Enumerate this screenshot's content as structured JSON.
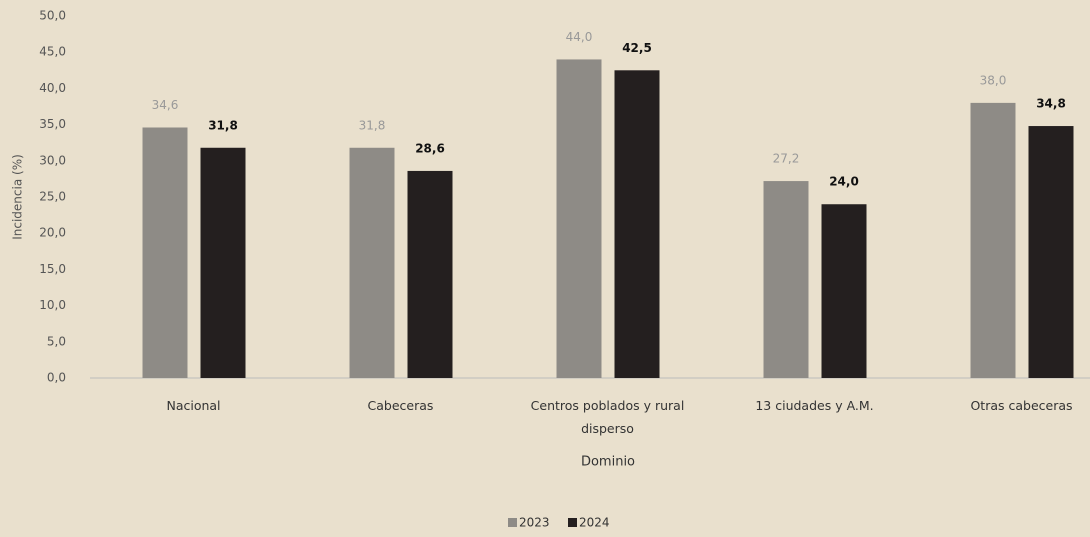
{
  "chart_data": {
    "type": "bar",
    "x_label": "Dominio",
    "y_label": "Incidencia (%)",
    "categories": [
      "Nacional",
      "Cabeceras",
      "Centros poblados y rural disperso",
      "13 ciudades y A.M.",
      "Otras cabeceras"
    ],
    "series": [
      {
        "name": "2023",
        "color": "#8e8b86",
        "values": [
          34.6,
          31.8,
          44.0,
          27.2,
          38.0
        ],
        "value_labels": [
          "34,6",
          "31,8",
          "44,0",
          "27,2",
          "38,0"
        ]
      },
      {
        "name": "2024",
        "color": "#241f1f",
        "values": [
          31.8,
          28.6,
          42.5,
          24.0,
          34.8
        ],
        "value_labels": [
          "31,8",
          "28,6",
          "42,5",
          "24,0",
          "34,8"
        ]
      }
    ],
    "ylim": [
      0,
      50
    ],
    "yticks": [
      {
        "value": 0,
        "label": "0,0"
      },
      {
        "value": 5,
        "label": "5,0"
      },
      {
        "value": 10,
        "label": "10,0"
      },
      {
        "value": 15,
        "label": "15,0"
      },
      {
        "value": 20,
        "label": "20,0"
      },
      {
        "value": 25,
        "label": "25,0"
      },
      {
        "value": 30,
        "label": "30,0"
      },
      {
        "value": 35,
        "label": "35,0"
      },
      {
        "value": 40,
        "label": "40,0"
      },
      {
        "value": 45,
        "label": "45,0"
      },
      {
        "value": 50,
        "label": "50,0"
      }
    ],
    "grid": false,
    "legend": "bottom"
  }
}
